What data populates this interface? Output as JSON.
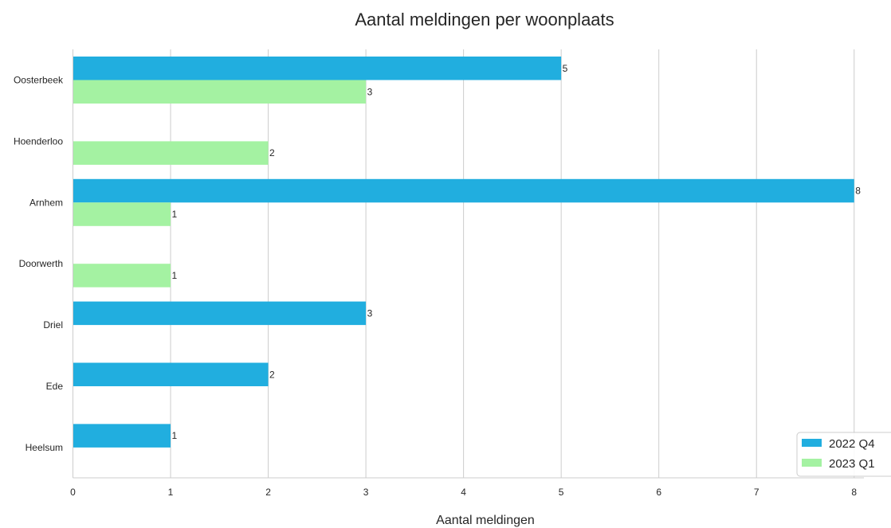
{
  "chart_data": {
    "type": "bar",
    "orientation": "horizontal",
    "title": "Aantal meldingen per woonplaats",
    "xlabel": "Aantal meldingen",
    "ylabel": "",
    "categories": [
      "Oosterbeek",
      "Hoenderloo",
      "Arnhem",
      "Doorwerth",
      "Driel",
      "Ede",
      "Heelsum"
    ],
    "series": [
      {
        "name": "2022 Q4",
        "color": "#21AEDF",
        "values": [
          5,
          0,
          8,
          0,
          3,
          2,
          1
        ]
      },
      {
        "name": "2023 Q1",
        "color": "#A4F2A2",
        "values": [
          3,
          2,
          1,
          1,
          0,
          0,
          0
        ]
      }
    ],
    "xlim": [
      0,
      8.1
    ],
    "xticks": [
      "0",
      "1",
      "2",
      "3",
      "4",
      "5",
      "6",
      "7",
      "8"
    ],
    "grid": "vertical",
    "legend": "bottom-right"
  }
}
